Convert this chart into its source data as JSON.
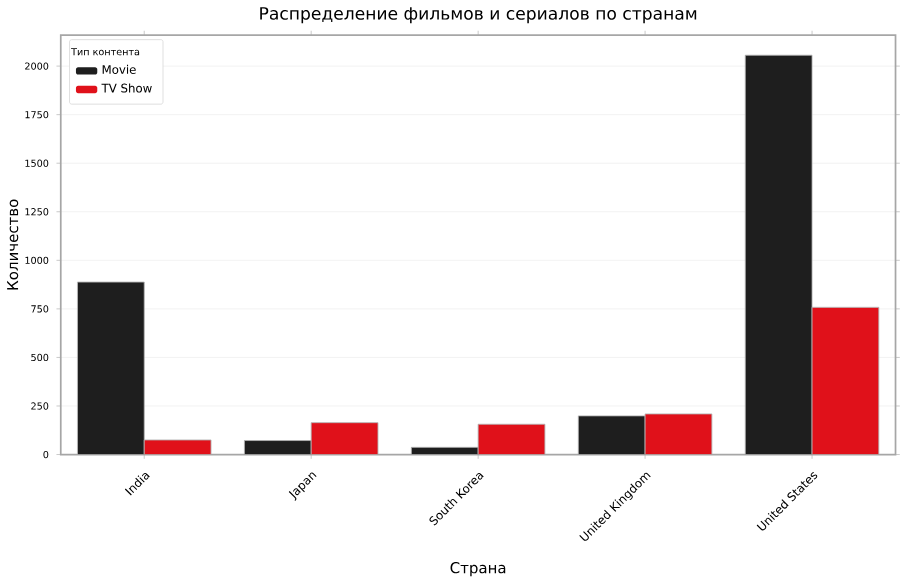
{
  "chart_data": {
    "type": "bar",
    "title": "Распределение фильмов и сериалов по странам",
    "xlabel": "Страна",
    "ylabel": "Количество",
    "legend_title": "Тип контента",
    "categories": [
      "India",
      "Japan",
      "South Korea",
      "United Kingdom",
      "United States"
    ],
    "series": [
      {
        "name": "Movie",
        "color": "#1e1e1e",
        "values": [
          888,
          72,
          37,
          199,
          2056
        ]
      },
      {
        "name": "TV Show",
        "color": "#e0111a",
        "values": [
          75,
          164,
          156,
          209,
          758
        ]
      }
    ],
    "ylim": [
      0,
      2160
    ],
    "yticks": [
      0,
      250,
      500,
      750,
      1000,
      1250,
      1500,
      1750,
      2000
    ],
    "grid": "y",
    "legend": "top left"
  }
}
